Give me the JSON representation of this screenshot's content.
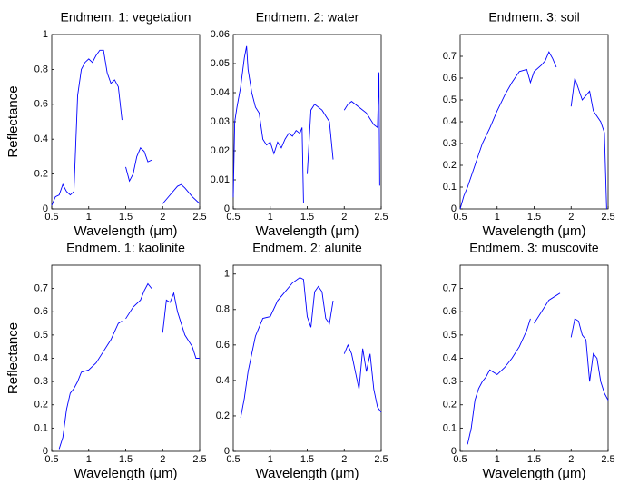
{
  "chart_data": [
    {
      "type": "line",
      "title": "Endmem. 1: vegetation",
      "xlabel": "Wavelength (μm)",
      "ylabel": "Reflectance",
      "xlim": [
        0.5,
        2.5
      ],
      "xticks": [
        0.5,
        1,
        1.5,
        2,
        2.5
      ],
      "ylim": [
        0,
        1
      ],
      "yticks": [
        0,
        0.2,
        0.4,
        0.6,
        0.8,
        1
      ],
      "x": [
        0.5,
        0.55,
        0.6,
        0.65,
        0.7,
        0.75,
        0.8,
        0.85,
        0.9,
        0.95,
        1.0,
        1.05,
        1.1,
        1.15,
        1.2,
        1.25,
        1.3,
        1.35,
        1.4,
        1.45,
        1.47,
        1.5,
        1.55,
        1.6,
        1.65,
        1.7,
        1.75,
        1.8,
        1.85,
        1.9,
        2.0,
        2.1,
        2.2,
        2.25,
        2.3,
        2.4,
        2.5
      ],
      "series": [
        {
          "color": "#0000ff",
          "values": [
            0.02,
            0.07,
            0.08,
            0.14,
            0.1,
            0.08,
            0.1,
            0.65,
            0.8,
            0.84,
            0.86,
            0.84,
            0.88,
            0.91,
            0.91,
            0.78,
            0.72,
            0.74,
            0.7,
            0.51,
            null,
            0.24,
            0.16,
            0.2,
            0.3,
            0.35,
            0.33,
            0.27,
            0.28,
            null,
            0.03,
            0.08,
            0.13,
            0.14,
            0.12,
            0.07,
            0.03
          ]
        }
      ]
    },
    {
      "type": "line",
      "title": "Endmem. 2: water",
      "xlabel": "Wavelength (μm)",
      "xlim": [
        0.5,
        2.5
      ],
      "xticks": [
        0.5,
        1,
        1.5,
        2,
        2.5
      ],
      "ylim": [
        0,
        0.06
      ],
      "yticks": [
        0,
        0.01,
        0.02,
        0.03,
        0.04,
        0.05,
        0.06
      ],
      "x": [
        0.5,
        0.52,
        0.55,
        0.6,
        0.65,
        0.68,
        0.7,
        0.75,
        0.8,
        0.85,
        0.9,
        0.95,
        1.0,
        1.05,
        1.1,
        1.15,
        1.2,
        1.25,
        1.3,
        1.35,
        1.4,
        1.43,
        1.45,
        1.47,
        1.5,
        1.55,
        1.6,
        1.7,
        1.75,
        1.8,
        1.85,
        1.9,
        2.0,
        2.05,
        2.1,
        2.2,
        2.3,
        2.4,
        2.45,
        2.47,
        2.48
      ],
      "series": [
        {
          "color": "#0000ff",
          "values": [
            0.004,
            0.03,
            0.035,
            0.042,
            0.052,
            0.056,
            0.048,
            0.04,
            0.035,
            0.033,
            0.024,
            0.022,
            0.023,
            0.019,
            0.023,
            0.021,
            0.024,
            0.026,
            0.025,
            0.027,
            0.026,
            0.028,
            0.002,
            null,
            0.012,
            0.034,
            0.036,
            0.034,
            0.032,
            0.03,
            0.017,
            null,
            0.034,
            0.036,
            0.037,
            0.035,
            0.033,
            0.029,
            0.028,
            0.047,
            0.008
          ]
        }
      ]
    },
    {
      "type": "line",
      "title": "Endmem. 3: soil",
      "xlabel": "Wavelength (μm)",
      "xlim": [
        0.5,
        2.5
      ],
      "xticks": [
        0.5,
        1,
        1.5,
        2,
        2.5
      ],
      "ylim": [
        0,
        0.8
      ],
      "yticks": [
        0,
        0.1,
        0.2,
        0.3,
        0.4,
        0.5,
        0.6,
        0.7
      ],
      "x": [
        0.5,
        0.55,
        0.6,
        0.7,
        0.8,
        0.9,
        1.0,
        1.1,
        1.2,
        1.3,
        1.4,
        1.45,
        1.5,
        1.6,
        1.65,
        1.7,
        1.75,
        1.8,
        1.9,
        2.0,
        2.05,
        2.1,
        2.15,
        2.2,
        2.25,
        2.3,
        2.4,
        2.45,
        2.48
      ],
      "series": [
        {
          "color": "#0000ff",
          "values": [
            0.0,
            0.06,
            0.1,
            0.2,
            0.3,
            0.37,
            0.45,
            0.52,
            0.58,
            0.63,
            0.64,
            0.58,
            0.63,
            0.66,
            0.68,
            0.72,
            0.69,
            0.65,
            null,
            0.47,
            0.6,
            0.55,
            0.5,
            0.52,
            0.54,
            0.45,
            0.4,
            0.35,
            0.0
          ]
        }
      ]
    },
    {
      "type": "line",
      "title": "Endmem. 1: kaolinite",
      "xlabel": "Wavelength (μm)",
      "ylabel": "Reflectance",
      "xlim": [
        0.5,
        2.5
      ],
      "xticks": [
        0.5,
        1,
        1.5,
        2,
        2.5
      ],
      "ylim": [
        0,
        0.8
      ],
      "yticks": [
        0,
        0.1,
        0.2,
        0.3,
        0.4,
        0.5,
        0.6,
        0.7
      ],
      "x": [
        0.6,
        0.65,
        0.7,
        0.75,
        0.8,
        0.85,
        0.9,
        1.0,
        1.1,
        1.2,
        1.3,
        1.4,
        1.45,
        1.47,
        1.5,
        1.6,
        1.7,
        1.75,
        1.8,
        1.85,
        1.9,
        2.0,
        2.05,
        2.1,
        2.15,
        2.2,
        2.25,
        2.3,
        2.4,
        2.45,
        2.5
      ],
      "series": [
        {
          "color": "#0000ff",
          "values": [
            0.01,
            0.06,
            0.18,
            0.25,
            0.27,
            0.3,
            0.34,
            0.35,
            0.38,
            0.43,
            0.48,
            0.55,
            0.56,
            null,
            0.57,
            0.62,
            0.65,
            0.69,
            0.72,
            0.7,
            null,
            0.51,
            0.65,
            0.64,
            0.68,
            0.6,
            0.55,
            0.5,
            0.45,
            0.4,
            0.4
          ]
        }
      ]
    },
    {
      "type": "line",
      "title": "Endmem. 2: alunite",
      "xlabel": "Wavelength (μm)",
      "xlim": [
        0.5,
        2.5
      ],
      "xticks": [
        0.5,
        1,
        1.5,
        2,
        2.5
      ],
      "ylim": [
        0,
        1.05
      ],
      "yticks": [
        0,
        0.2,
        0.4,
        0.6,
        0.8,
        1
      ],
      "x": [
        0.6,
        0.65,
        0.7,
        0.75,
        0.8,
        0.85,
        0.9,
        1.0,
        1.1,
        1.2,
        1.3,
        1.4,
        1.45,
        1.5,
        1.55,
        1.6,
        1.65,
        1.7,
        1.75,
        1.8,
        1.85,
        1.9,
        2.0,
        2.05,
        2.1,
        2.2,
        2.25,
        2.3,
        2.35,
        2.4,
        2.45,
        2.5
      ],
      "series": [
        {
          "color": "#0000ff",
          "values": [
            0.19,
            0.3,
            0.45,
            0.55,
            0.65,
            0.7,
            0.75,
            0.76,
            0.85,
            0.9,
            0.95,
            0.98,
            0.97,
            0.76,
            0.7,
            0.9,
            0.93,
            0.9,
            0.75,
            0.72,
            0.85,
            null,
            0.55,
            0.6,
            0.55,
            0.35,
            0.58,
            0.45,
            0.55,
            0.35,
            0.25,
            0.22
          ]
        }
      ]
    },
    {
      "type": "line",
      "title": "Endmem. 3: muscovite",
      "xlabel": "Wavelength (μm)",
      "xlim": [
        0.5,
        2.5
      ],
      "xticks": [
        0.5,
        1,
        1.5,
        2,
        2.5
      ],
      "ylim": [
        0,
        0.8
      ],
      "yticks": [
        0,
        0.1,
        0.2,
        0.3,
        0.4,
        0.5,
        0.6,
        0.7
      ],
      "x": [
        0.6,
        0.65,
        0.7,
        0.75,
        0.8,
        0.85,
        0.9,
        0.95,
        1.0,
        1.1,
        1.2,
        1.3,
        1.4,
        1.45,
        1.47,
        1.5,
        1.6,
        1.7,
        1.8,
        1.85,
        1.9,
        2.0,
        2.05,
        2.1,
        2.15,
        2.2,
        2.25,
        2.3,
        2.35,
        2.4,
        2.45,
        2.5
      ],
      "series": [
        {
          "color": "#0000ff",
          "values": [
            0.03,
            0.1,
            0.22,
            0.27,
            0.3,
            0.32,
            0.35,
            0.34,
            0.33,
            0.36,
            0.4,
            0.45,
            0.52,
            0.57,
            null,
            0.55,
            0.6,
            0.65,
            0.67,
            0.68,
            null,
            0.49,
            0.57,
            0.56,
            0.5,
            0.48,
            0.3,
            0.42,
            0.4,
            0.3,
            0.25,
            0.22
          ]
        }
      ]
    }
  ]
}
